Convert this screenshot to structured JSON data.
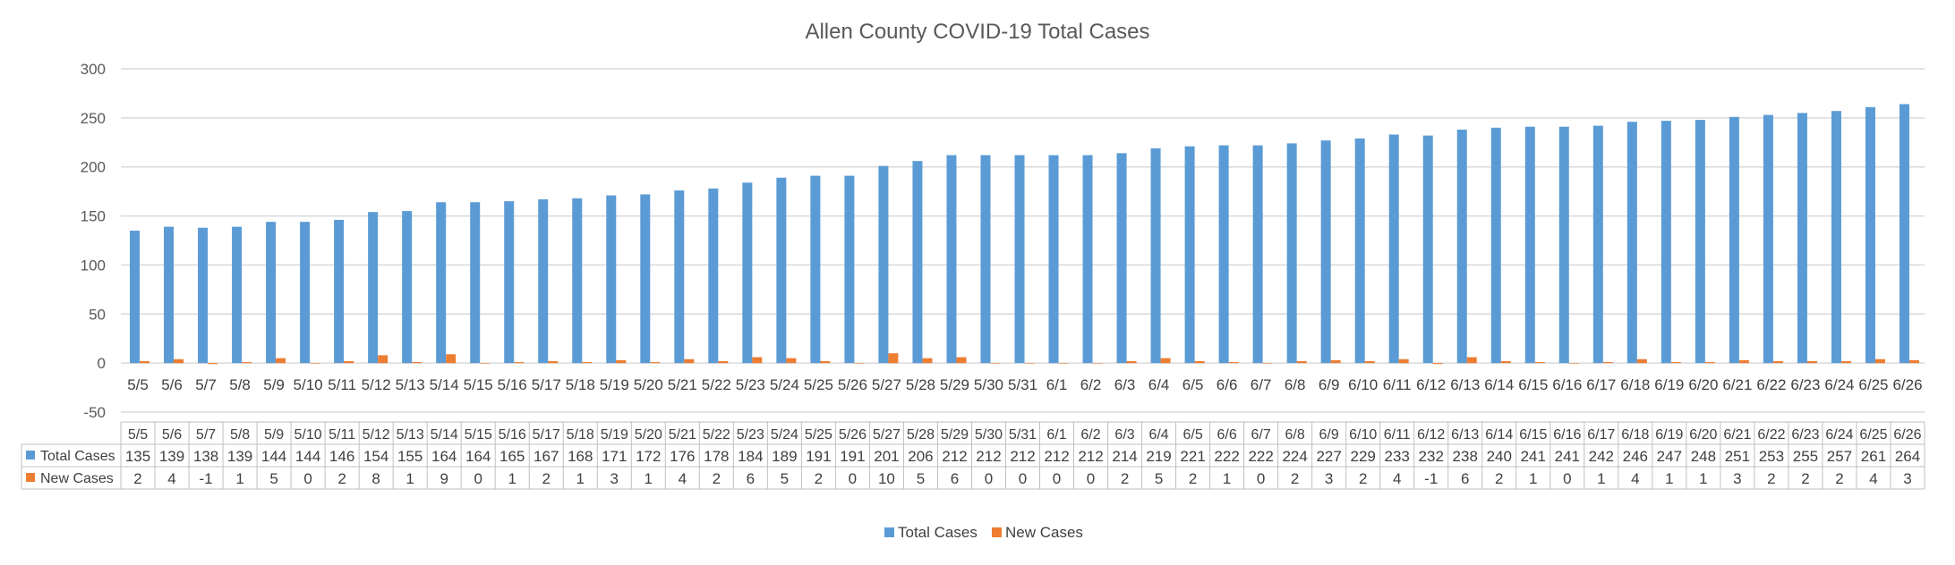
{
  "chart_data": {
    "type": "bar",
    "title": "Allen County COVID-19 Total Cases",
    "xlabel": "",
    "ylabel": "",
    "ylim": [
      -50,
      300
    ],
    "yticks": [
      -50,
      0,
      50,
      100,
      150,
      200,
      250,
      300
    ],
    "grid": true,
    "legend_position": "bottom",
    "data_table": true,
    "categories": [
      "5/5",
      "5/6",
      "5/7",
      "5/8",
      "5/9",
      "5/10",
      "5/11",
      "5/12",
      "5/13",
      "5/14",
      "5/15",
      "5/16",
      "5/17",
      "5/18",
      "5/19",
      "5/20",
      "5/21",
      "5/22",
      "5/23",
      "5/24",
      "5/25",
      "5/26",
      "5/27",
      "5/28",
      "5/29",
      "5/30",
      "5/31",
      "6/1",
      "6/2",
      "6/3",
      "6/4",
      "6/5",
      "6/6",
      "6/7",
      "6/8",
      "6/9",
      "6/10",
      "6/11",
      "6/12",
      "6/13",
      "6/14",
      "6/15",
      "6/16",
      "6/17",
      "6/18",
      "6/19",
      "6/20",
      "6/21",
      "6/22",
      "6/23",
      "6/24",
      "6/25",
      "6/26"
    ],
    "series": [
      {
        "name": "Total Cases",
        "color": "#5B9BD5",
        "values": [
          135,
          139,
          138,
          139,
          144,
          144,
          146,
          154,
          155,
          164,
          164,
          165,
          167,
          168,
          171,
          172,
          176,
          178,
          184,
          189,
          191,
          191,
          201,
          206,
          212,
          212,
          212,
          212,
          212,
          214,
          219,
          221,
          222,
          222,
          224,
          227,
          229,
          233,
          232,
          238,
          240,
          241,
          241,
          242,
          246,
          247,
          248,
          251,
          253,
          255,
          257,
          261,
          264
        ]
      },
      {
        "name": "New Cases",
        "color": "#ED7D31",
        "values": [
          2,
          4,
          -1,
          1,
          5,
          0,
          2,
          8,
          1,
          9,
          0,
          1,
          2,
          1,
          3,
          1,
          4,
          2,
          6,
          5,
          2,
          0,
          10,
          5,
          6,
          0,
          0,
          0,
          0,
          2,
          5,
          2,
          1,
          0,
          2,
          3,
          2,
          4,
          -1,
          6,
          2,
          1,
          0,
          1,
          4,
          1,
          1,
          3,
          2,
          2,
          2,
          4,
          3
        ]
      }
    ]
  }
}
